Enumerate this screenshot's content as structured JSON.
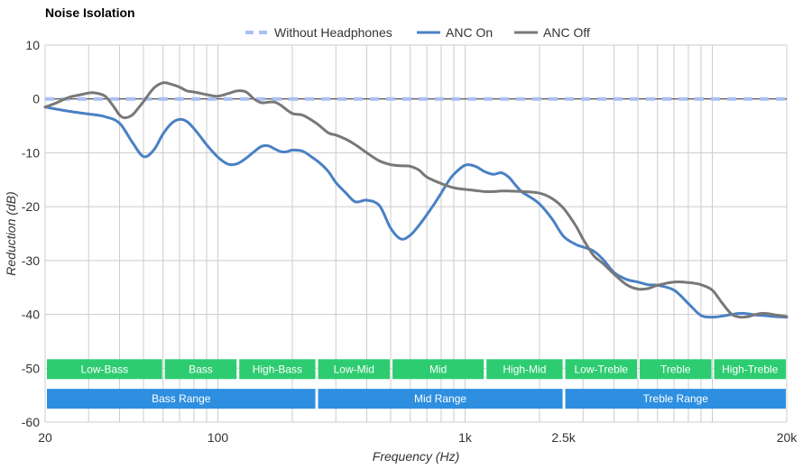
{
  "title": "Noise Isolation",
  "chart_data": {
    "type": "line",
    "title": "Noise Isolation",
    "xlabel": "Frequency (Hz)",
    "ylabel": "Reduction (dB)",
    "xscale": "log",
    "xlim": [
      20,
      20000
    ],
    "ylim": [
      -60,
      10
    ],
    "grid": true,
    "legend_position": "top",
    "x_ticks": [
      {
        "value": 20,
        "label": "20"
      },
      {
        "value": 100,
        "label": "100"
      },
      {
        "value": 1000,
        "label": "1k"
      },
      {
        "value": 2500,
        "label": "2.5k"
      },
      {
        "value": 20000,
        "label": "20k"
      }
    ],
    "y_ticks": [
      10,
      0,
      -10,
      -20,
      -30,
      -40,
      -50,
      -60
    ],
    "series": [
      {
        "name": "Without Headphones",
        "color": "#a9bff5",
        "dashed": true,
        "x": [
          20,
          20000
        ],
        "y": [
          0,
          0
        ]
      },
      {
        "name": "ANC On",
        "color": "#4a80c4",
        "dashed": false,
        "x": [
          20,
          25,
          30,
          35,
          40,
          45,
          50,
          55,
          60,
          65,
          70,
          75,
          80,
          85,
          90,
          100,
          110,
          120,
          130,
          140,
          150,
          160,
          170,
          180,
          190,
          200,
          220,
          240,
          260,
          280,
          300,
          330,
          360,
          400,
          450,
          500,
          550,
          600,
          650,
          700,
          750,
          800,
          850,
          900,
          1000,
          1100,
          1200,
          1300,
          1400,
          1500,
          1600,
          1700,
          1800,
          2000,
          2250,
          2500,
          2800,
          3000,
          3300,
          3600,
          4000,
          4500,
          5000,
          5500,
          6000,
          7000,
          8000,
          9000,
          10000,
          11000,
          12000,
          13000,
          14000,
          15000,
          16000,
          17000,
          18000,
          20000
        ],
        "y": [
          -1.5,
          -2.3,
          -2.8,
          -3.3,
          -4.5,
          -8,
          -10.7,
          -9.5,
          -6.5,
          -4.5,
          -3.8,
          -4.2,
          -5.5,
          -7,
          -8.5,
          -10.8,
          -12.1,
          -12,
          -11,
          -9.8,
          -8.8,
          -8.7,
          -9.3,
          -9.8,
          -9.8,
          -9.5,
          -9.7,
          -10.8,
          -12,
          -13.5,
          -15.5,
          -17.5,
          -19.1,
          -18.8,
          -19.8,
          -24,
          -26,
          -25.3,
          -23.5,
          -21.5,
          -19.5,
          -17.5,
          -15.5,
          -14,
          -12.3,
          -12.5,
          -13.5,
          -14,
          -13.7,
          -14.5,
          -16,
          -17.3,
          -18,
          -19.5,
          -22.3,
          -25.5,
          -27,
          -27.5,
          -28.2,
          -29.7,
          -32.2,
          -33.5,
          -34,
          -34.5,
          -34.6,
          -35.5,
          -38,
          -40.2,
          -40.5,
          -40.3,
          -40,
          -39.8,
          -39.9,
          -40.1,
          -40.2,
          -40.3,
          -40.4,
          -40.5
        ]
      },
      {
        "name": "ANC Off",
        "color": "#787878",
        "dashed": false,
        "x": [
          20,
          22,
          25,
          28,
          30,
          32,
          35,
          38,
          40,
          42,
          45,
          48,
          50,
          55,
          60,
          65,
          70,
          75,
          80,
          90,
          100,
          110,
          120,
          130,
          140,
          150,
          160,
          170,
          180,
          200,
          220,
          250,
          280,
          300,
          330,
          360,
          400,
          450,
          500,
          550,
          600,
          650,
          700,
          800,
          900,
          1000,
          1100,
          1200,
          1300,
          1400,
          1500,
          1700,
          2000,
          2250,
          2500,
          2800,
          3000,
          3300,
          3600,
          4000,
          4500,
          5000,
          5500,
          6000,
          7000,
          8000,
          9000,
          10000,
          11000,
          12000,
          13000,
          14000,
          15000,
          16000,
          17000,
          18000,
          20000
        ],
        "y": [
          -1.5,
          -0.8,
          0.3,
          0.8,
          1.1,
          1.1,
          0.5,
          -1.5,
          -3,
          -3.5,
          -3,
          -1.5,
          -0.5,
          2,
          3,
          2.7,
          2.2,
          1.5,
          1.3,
          0.8,
          0.5,
          1,
          1.5,
          1.3,
          0,
          -0.7,
          -0.6,
          -0.6,
          -1.2,
          -2.7,
          -3,
          -4.5,
          -6.3,
          -6.7,
          -7.5,
          -8.5,
          -10,
          -11.5,
          -12.2,
          -12.4,
          -12.5,
          -13.2,
          -14.5,
          -15.7,
          -16.5,
          -16.8,
          -17,
          -17.2,
          -17.2,
          -17.1,
          -17.1,
          -17.2,
          -17.5,
          -18.5,
          -20.3,
          -23.5,
          -26,
          -29,
          -30.5,
          -32.5,
          -34.5,
          -35.3,
          -35.2,
          -34.6,
          -34,
          -34.1,
          -34.5,
          -35.5,
          -38,
          -40,
          -40.5,
          -40.4,
          -40,
          -39.8,
          -39.9,
          -40.1,
          -40.4
        ]
      }
    ],
    "frequency_bands": [
      {
        "label": "Low-Bass",
        "from": 20,
        "to": 60
      },
      {
        "label": "Bass",
        "from": 60,
        "to": 120
      },
      {
        "label": "High-Bass",
        "from": 120,
        "to": 250
      },
      {
        "label": "Low-Mid",
        "from": 250,
        "to": 500
      },
      {
        "label": "Mid",
        "from": 500,
        "to": 1200
      },
      {
        "label": "High-Mid",
        "from": 1200,
        "to": 2500
      },
      {
        "label": "Low-Treble",
        "from": 2500,
        "to": 5000
      },
      {
        "label": "Treble",
        "from": 5000,
        "to": 10000
      },
      {
        "label": "High-Treble",
        "from": 10000,
        "to": 20000
      }
    ],
    "band_color": "#2ecc71",
    "ranges": [
      {
        "label": "Bass Range",
        "from": 20,
        "to": 250
      },
      {
        "label": "Mid Range",
        "from": 250,
        "to": 2500
      },
      {
        "label": "Treble Range",
        "from": 2500,
        "to": 20000
      }
    ],
    "range_color": "#2e8fe0"
  }
}
